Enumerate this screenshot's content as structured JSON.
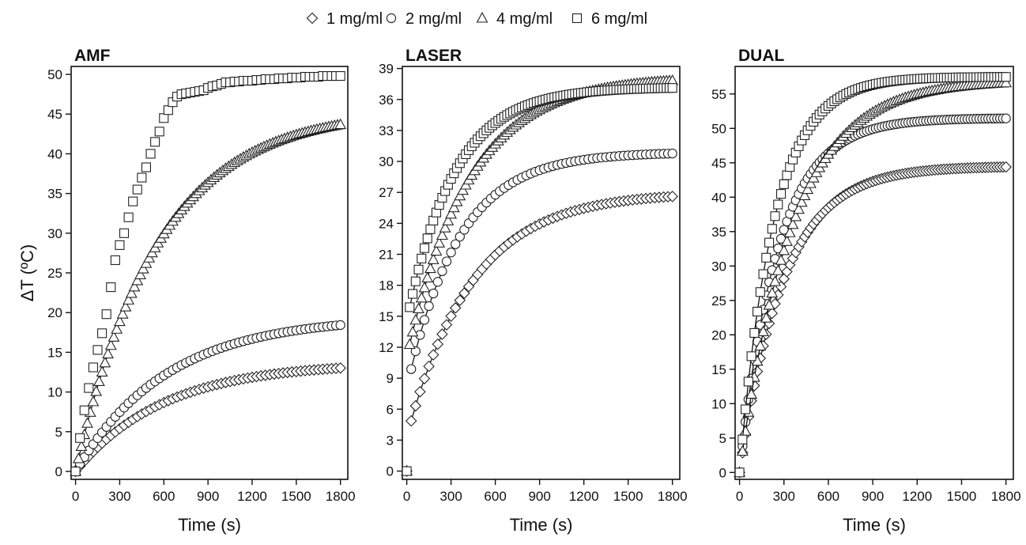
{
  "legend": {
    "placement": "top-center",
    "entries": [
      {
        "label": "1 mg/ml",
        "marker": "diamond-icon"
      },
      {
        "label": "2 mg/ml",
        "marker": "circle-icon"
      },
      {
        "label": "4 mg/ml",
        "marker": "triangle-icon"
      },
      {
        "label": "6 mg/ml",
        "marker": "square-icon"
      }
    ]
  },
  "chart_data": [
    {
      "type": "scatter",
      "title": "AMF",
      "xlabel": "Time (s)",
      "ylabel": "ΔT (ºC)",
      "xlim": [
        -30,
        1850
      ],
      "ylim": [
        -1,
        51
      ],
      "xticks": [
        0,
        300,
        600,
        900,
        1200,
        1500,
        1800
      ],
      "yticks": [
        0,
        5,
        10,
        15,
        20,
        25,
        30,
        35,
        40,
        45,
        50
      ],
      "grid": false,
      "series": [
        {
          "name": "1 mg/ml",
          "marker": "diamond",
          "curve": "exp",
          "a": 13.7,
          "tau": 600,
          "point_interval": 30,
          "x_max": 1800
        },
        {
          "name": "2 mg/ml",
          "marker": "circle",
          "curve": "exp",
          "a": 19.5,
          "tau": 620,
          "point_interval": 30,
          "x_max": 1800
        },
        {
          "name": "4 mg/ml",
          "marker": "triangle",
          "curve": "exp",
          "a": 45.5,
          "tau": 560,
          "point_interval": 20,
          "x_max": 1800
        },
        {
          "name": "6 mg/ml",
          "marker": "square",
          "curve": "points",
          "x": [
            0,
            30,
            60,
            90,
            120,
            150,
            180,
            210,
            240,
            270,
            300,
            330,
            360,
            390,
            420,
            450,
            480,
            510,
            540,
            570,
            600,
            630,
            660,
            690,
            720,
            750,
            780,
            810,
            840,
            870,
            900,
            930,
            960,
            990,
            1020,
            1050,
            1080,
            1110,
            1140,
            1170,
            1200,
            1230,
            1260,
            1290,
            1320,
            1350,
            1380,
            1410,
            1440,
            1470,
            1500,
            1530,
            1560,
            1590,
            1620,
            1650,
            1680,
            1710,
            1740,
            1770,
            1800
          ],
          "y": [
            0,
            4.2,
            7.7,
            10.5,
            13.1,
            15.3,
            17.4,
            19.8,
            23.2,
            26.6,
            28.5,
            30.0,
            32.0,
            34.0,
            35.5,
            37.0,
            38.3,
            40.0,
            41.5,
            42.8,
            44.5,
            45.5,
            46.5,
            47.2,
            47.5,
            47.6,
            47.7,
            47.8,
            47.9,
            48.0,
            48.3,
            48.5,
            48.6,
            48.8,
            49.0,
            49.0,
            49.1,
            49.1,
            49.2,
            49.2,
            49.2,
            49.3,
            49.3,
            49.4,
            49.4,
            49.4,
            49.5,
            49.5,
            49.5,
            49.6,
            49.6,
            49.6,
            49.7,
            49.7,
            49.7,
            49.7,
            49.8,
            49.8,
            49.8,
            49.8,
            49.8
          ]
        }
      ]
    },
    {
      "type": "scatter",
      "title": "LASER",
      "xlabel": "Time (s)",
      "ylabel": "",
      "xlim": [
        -30,
        1850
      ],
      "ylim": [
        -0.8,
        39.2
      ],
      "xticks": [
        0,
        300,
        600,
        900,
        1200,
        1500,
        1800
      ],
      "yticks": [
        0,
        3,
        6,
        9,
        12,
        15,
        18,
        21,
        24,
        27,
        30,
        33,
        36,
        39
      ],
      "grid": false,
      "series": [
        {
          "name": "1 mg/ml",
          "marker": "diamond",
          "curve": "exp",
          "a": 27.0,
          "tau": 440,
          "offset": 3.3,
          "point_interval": 30,
          "x_max": 1800
        },
        {
          "name": "2 mg/ml",
          "marker": "circle",
          "curve": "exp",
          "a": 30.9,
          "tau": 350,
          "offset": 8.0,
          "point_interval": 30,
          "x_max": 1800
        },
        {
          "name": "4 mg/ml",
          "marker": "triangle",
          "curve": "exp",
          "a": 38.2,
          "tau": 420,
          "offset": 11.0,
          "point_interval": 20,
          "x_max": 1800
        },
        {
          "name": "6 mg/ml",
          "marker": "square",
          "curve": "exp",
          "a": 37.2,
          "tau": 320,
          "offset": 14.5,
          "point_interval": 20,
          "x_max": 1800
        }
      ]
    },
    {
      "type": "scatter",
      "title": "DUAL",
      "xlabel": "Time (s)",
      "ylabel": "",
      "xlim": [
        -30,
        1850
      ],
      "ylim": [
        -1,
        59
      ],
      "xticks": [
        0,
        300,
        600,
        900,
        1200,
        1500,
        1800
      ],
      "yticks": [
        0,
        5,
        10,
        15,
        20,
        25,
        30,
        35,
        40,
        45,
        50,
        55
      ],
      "grid": false,
      "series": [
        {
          "name": "1 mg/ml",
          "marker": "diamond",
          "curve": "exp",
          "a": 44.5,
          "tau": 300,
          "point_interval": 20,
          "x_max": 1800
        },
        {
          "name": "2 mg/ml",
          "marker": "circle",
          "curve": "exp",
          "a": 51.5,
          "tau": 260,
          "point_interval": 20,
          "x_max": 1800
        },
        {
          "name": "4 mg/ml",
          "marker": "triangle",
          "curve": "exp",
          "a": 57.0,
          "tau": 360,
          "point_interval": 20,
          "x_max": 1800
        },
        {
          "name": "6 mg/ml",
          "marker": "square",
          "curve": "exp",
          "a": 57.5,
          "tau": 230,
          "point_interval": 20,
          "x_max": 1800
        }
      ]
    }
  ]
}
